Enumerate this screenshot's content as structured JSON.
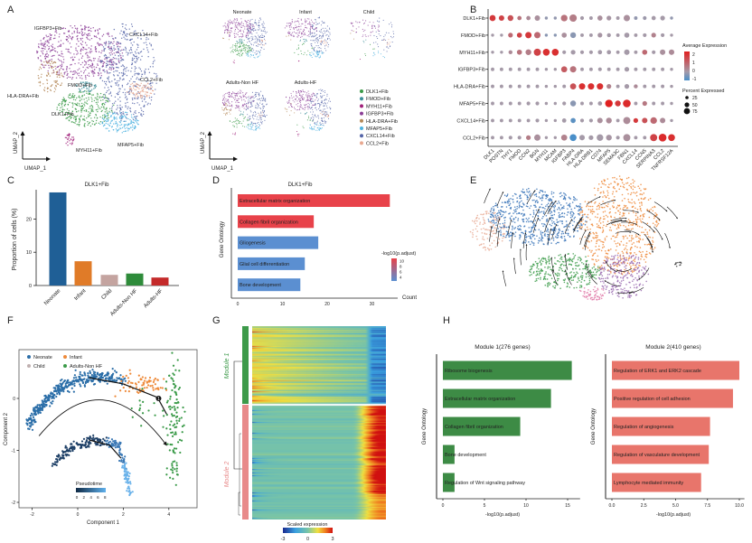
{
  "panel_labels": [
    "A",
    "B",
    "C",
    "D",
    "E",
    "F",
    "G",
    "H"
  ],
  "panel_A": {
    "cluster_labels": [
      "IGFBP3+Fib",
      "CXCL14+Fib",
      "CCL2+Fib",
      "HLA-DRA+Fib",
      "FMOD+Fib",
      "DLK1+Fib",
      "MFAP5+Fib",
      "MYH11+Fib"
    ],
    "umap_x": "UMAP_1",
    "umap_y": "UMAP_2",
    "groups": [
      "Neonate",
      "Infant",
      "Child",
      "Adults-Non HF",
      "Adults-HF"
    ],
    "legend": [
      "DLK1+Fib",
      "FMOD+Fib",
      "MYH11+Fib",
      "IGFBP3+Fib",
      "HLA-DRA+Fib",
      "MFAP5+Fib",
      "CXCL14+Fib",
      "CCL2+Fib"
    ],
    "colors": [
      "#3a9a48",
      "#3d8f9a",
      "#a0207a",
      "#8b3d96",
      "#b58a5a",
      "#4fb3e0",
      "#5565a8",
      "#e8a890"
    ]
  },
  "panel_E": {
    "colors": [
      "#3a74b8",
      "#ee8a3a",
      "#3a9a48",
      "#9a6bb0",
      "#e8a890"
    ]
  },
  "chart_data": [
    {
      "type": "bar",
      "title": "DLK1+Fib",
      "ylabel": "Proportion of cells (%)",
      "categories": [
        "Neonate",
        "Infant",
        "Child",
        "Adults-Non HF",
        "Adults-HF"
      ],
      "values": [
        28,
        7.3,
        3.2,
        3.6,
        2.4
      ],
      "colors": [
        "#1f5f96",
        "#e07b28",
        "#c4a4a0",
        "#2e8b3a",
        "#c42a2a"
      ],
      "yticks": [
        "0",
        "10",
        "20"
      ],
      "ylim": [
        0,
        29
      ]
    },
    {
      "type": "bar",
      "orientation": "horizontal",
      "title": "DLK1+Fib",
      "ylabel": "Gene Ontology",
      "xlabel": "Count",
      "categories": [
        "Extracellular matrix organization",
        "Collagen fibril organization",
        "Gliogenesis",
        "Glial cell differentiation",
        "Bone development"
      ],
      "values": [
        34,
        17,
        18,
        15,
        14
      ],
      "colors": [
        "#e8424a",
        "#e8424a",
        "#5b8fd1",
        "#5b8fd1",
        "#5b8fd1"
      ],
      "xticks": [
        "0",
        "10",
        "20",
        "30"
      ],
      "xlim": [
        0,
        36
      ],
      "legend_title": "-log10(p.adjust)",
      "legend_ticks": [
        "10",
        "8",
        "6",
        "4"
      ]
    },
    {
      "type": "dotplot",
      "genes": [
        "DLK1",
        "POSTN",
        "THY1",
        "FMOD",
        "CCN2",
        "BGN",
        "MYH11",
        "MCAM",
        "IGFBP3",
        "FABP4",
        "HLA-DRA",
        "HLA-DRB1",
        "CD74",
        "MFAP5",
        "SEMA3C",
        "FBN1",
        "CXCL14",
        "CCN5",
        "SERPINA3",
        "CCL2",
        "TNFRSF12A"
      ],
      "clusters": [
        "DLK1+Fib",
        "FMOD+Fib",
        "MYH11+Fib",
        "IGFBP3+Fib",
        "HLA-DRA+Fib",
        "MFAP5+Fib",
        "CXCL14+Fib",
        "CCL2+Fib"
      ],
      "avg_expression": [
        [
          2,
          1.8,
          1.5,
          0.8,
          0.3,
          0.2,
          -0.2,
          -0.2,
          0.8,
          0.6,
          0,
          0,
          0.2,
          0.1,
          0,
          0.2,
          -0.2,
          -0.1,
          0,
          0,
          -0.2
        ],
        [
          0,
          0,
          1,
          1.8,
          2,
          1,
          -0.3,
          -0.3,
          0.2,
          -0.3,
          0,
          0,
          0.1,
          0,
          0,
          0,
          0,
          0,
          0.5,
          0,
          0
        ],
        [
          0,
          0,
          0.3,
          0.8,
          0.6,
          1.8,
          2.2,
          2.2,
          0,
          0,
          0,
          0,
          0,
          0,
          0,
          0,
          0,
          1,
          0,
          0.2,
          0.3
        ],
        [
          0,
          0,
          0,
          0,
          0,
          0,
          0,
          0,
          1.3,
          0.8,
          0,
          0,
          0,
          0,
          0,
          0,
          0,
          0,
          0,
          0,
          0
        ],
        [
          0,
          0,
          0,
          0,
          0,
          0,
          0,
          0,
          0,
          1.5,
          2.2,
          2.2,
          2.2,
          0.5,
          0,
          0,
          0.3,
          0,
          0,
          0,
          0
        ],
        [
          0,
          0,
          0,
          0,
          0,
          0,
          0,
          0,
          0,
          -0.3,
          0,
          0,
          0,
          2.5,
          2,
          2.3,
          0,
          0.7,
          0,
          0,
          0
        ],
        [
          0,
          0,
          0,
          0,
          0,
          0,
          0,
          0,
          0,
          -0.8,
          0,
          0,
          0.2,
          0.3,
          0,
          0.3,
          2,
          1.5,
          1,
          0.3,
          0
        ],
        [
          0,
          0,
          0,
          0,
          0.6,
          0.2,
          0,
          0,
          0.5,
          -1,
          0,
          0,
          0,
          0.1,
          0,
          0.2,
          0,
          0,
          1.8,
          2.3,
          2.2
        ]
      ],
      "pct_expressed": [
        [
          40,
          30,
          35,
          15,
          15,
          30,
          5,
          5,
          50,
          65,
          10,
          8,
          25,
          20,
          8,
          45,
          8,
          10,
          15,
          20,
          5
        ],
        [
          5,
          5,
          20,
          25,
          45,
          45,
          5,
          5,
          25,
          35,
          8,
          8,
          20,
          12,
          8,
          25,
          8,
          10,
          20,
          10,
          5
        ],
        [
          5,
          5,
          12,
          25,
          35,
          60,
          55,
          55,
          10,
          20,
          10,
          10,
          15,
          15,
          8,
          30,
          8,
          25,
          10,
          30,
          30
        ],
        [
          8,
          8,
          8,
          8,
          8,
          8,
          5,
          5,
          40,
          45,
          8,
          8,
          10,
          8,
          8,
          20,
          8,
          8,
          8,
          8,
          5
        ],
        [
          8,
          8,
          8,
          8,
          8,
          8,
          5,
          5,
          8,
          40,
          45,
          45,
          45,
          20,
          8,
          20,
          12,
          8,
          8,
          8,
          5
        ],
        [
          8,
          8,
          8,
          8,
          10,
          10,
          5,
          5,
          10,
          35,
          8,
          8,
          15,
          70,
          35,
          75,
          8,
          20,
          8,
          8,
          5
        ],
        [
          8,
          8,
          8,
          8,
          8,
          10,
          5,
          5,
          15,
          25,
          10,
          10,
          30,
          35,
          8,
          60,
          20,
          30,
          50,
          30,
          5
        ],
        [
          8,
          8,
          10,
          10,
          20,
          45,
          5,
          5,
          40,
          55,
          30,
          20,
          50,
          35,
          10,
          60,
          8,
          8,
          60,
          75,
          55
        ]
      ],
      "legend_color_title": "Average Expression",
      "legend_color_ticks": [
        "2",
        "1",
        "0",
        "-1"
      ],
      "legend_size_title": "Percent Expressed",
      "legend_size_ticks": [
        "25",
        "50",
        "75"
      ],
      "color_range": [
        -1,
        2.5
      ],
      "color_low": "#4a8fc9",
      "color_mid": "#a59aa8",
      "color_high": "#e02020"
    },
    {
      "type": "scatter",
      "xlabel": "Component 1",
      "ylabel": "Component 2",
      "xticks": [
        "-2",
        "0",
        "2",
        "4"
      ],
      "yticks": [
        "0",
        "-1",
        "-2"
      ],
      "xlim": [
        -2.6,
        5.2
      ],
      "ylim": [
        -2.1,
        0.94
      ],
      "legend": [
        "Neonate",
        "Infant",
        "Child",
        "Adults-Non HF"
      ],
      "colors": [
        "#2b6ea8",
        "#ee8a3a",
        "#c0b0b0",
        "#3a9a48"
      ],
      "pseudotime_title": "Pseudotime",
      "pseudotime_ticks": [
        "0",
        "2",
        "4",
        "6",
        "8"
      ],
      "branch_point": "1"
    },
    {
      "type": "heatmap",
      "modules": [
        "Module 1",
        "Module 2"
      ],
      "module_colors": [
        "#3d9a4a",
        "#e88a8a"
      ],
      "colorbar_title": "Scaled expression",
      "colorbar_ticks": [
        "-3",
        "0",
        "3"
      ],
      "range": [
        -3,
        3
      ]
    },
    {
      "type": "bar",
      "orientation": "horizontal",
      "title": "Module 1(276 genes)",
      "ylabel": "Gene Ontology",
      "xlabel": "-log10(p.adjust)",
      "categories": [
        "Ribosome biogenesis",
        "Extracellular matrix organization",
        "Collagen fibril organization",
        "Bone development",
        "Regulation of Wnt signaling pathway"
      ],
      "values": [
        15.5,
        13,
        9.3,
        1.4,
        1.4
      ],
      "color": "#3d8b45",
      "xticks": [
        "0",
        "5",
        "10",
        "15"
      ],
      "xlim": [
        0,
        16.5
      ]
    },
    {
      "type": "bar",
      "orientation": "horizontal",
      "title": "Module 2(410 genes)",
      "ylabel": "Gene Ontology",
      "xlabel": "-log10(p.adjust)",
      "categories": [
        "Regulation of ERK1 and ERK2 cascade",
        "Positive regulation of cell adhesion",
        "Regulation of angiogenesis",
        "Regulation of vasculature development",
        "Lymphocyte mediated immunity"
      ],
      "values": [
        10,
        9.5,
        7.7,
        7.6,
        7.0
      ],
      "color": "#e8756b",
      "xticks": [
        "0.0",
        "2.5",
        "5.0",
        "7.5",
        "10.0"
      ],
      "xlim": [
        0,
        10.4
      ]
    }
  ]
}
